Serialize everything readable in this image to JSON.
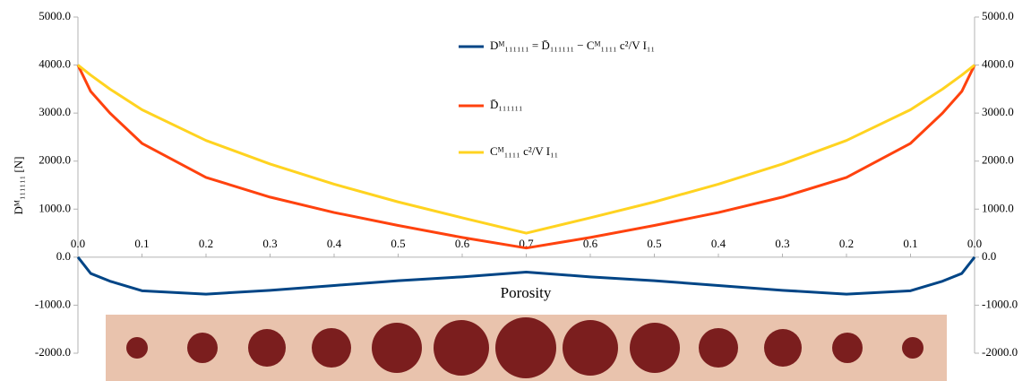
{
  "chart_data": {
    "type": "line",
    "x_label": "Porosity",
    "y_label": "Dᴹ₁₁₁₁₁₁ [N]",
    "x": [
      0,
      0.02,
      0.05,
      0.1,
      0.2,
      0.3,
      0.4,
      0.5,
      0.6,
      0.7,
      0.8,
      0.9,
      1.0,
      1.1,
      1.2,
      1.3,
      1.35,
      1.38,
      1.4
    ],
    "series": [
      {
        "name": "Dᴹ₁₁₁₁₁₁ = D̄₁₁₁₁₁₁ − Cᴹ₁₁₁₁ c²/V I₁₁",
        "color": "#004586",
        "values": [
          0,
          -340,
          -500,
          -700,
          -770,
          -690,
          -590,
          -490,
          -410,
          -310,
          -410,
          -490,
          -590,
          -690,
          -770,
          -700,
          -500,
          -340,
          0
        ]
      },
      {
        "name": "D̄₁₁₁₁₁₁",
        "color": "#ff420e",
        "values": [
          4000,
          3450,
          3000,
          2370,
          1660,
          1250,
          930,
          660,
          410,
          190,
          410,
          660,
          930,
          1250,
          1660,
          2370,
          3000,
          3450,
          4000
        ]
      },
      {
        "name": "Cᴹ₁₁₁₁ c²/V I₁₁",
        "color": "#ffd320",
        "values": [
          4000,
          3790,
          3500,
          3070,
          2430,
          1940,
          1520,
          1150,
          820,
          500,
          820,
          1150,
          1520,
          1940,
          2430,
          3070,
          3500,
          3790,
          4000
        ]
      }
    ],
    "xlim": [
      0,
      1.4
    ],
    "xticks": [
      {
        "value": 0,
        "label": "0.0"
      },
      0.1,
      0.2,
      0.3,
      0.4,
      0.5,
      0.6,
      0.7,
      {
        "value": 0.8,
        "label": "0.6"
      },
      {
        "value": 0.9,
        "label": "0.5"
      },
      {
        "value": 1.0,
        "label": "0.4"
      },
      {
        "value": 1.1,
        "label": "0.3"
      },
      {
        "value": 1.2,
        "label": "0.2"
      },
      {
        "value": 1.3,
        "label": "0.1"
      },
      {
        "value": 1.4,
        "label": "0.0"
      }
    ],
    "ylim": [
      -2000,
      5000
    ],
    "yticks": [
      {
        "value": -2000,
        "label": "-2000.0"
      },
      {
        "value": -1000,
        "label": "-1000.0"
      },
      {
        "value": 0,
        "label": "0.0"
      },
      {
        "value": 1000,
        "label": "1000.0"
      },
      {
        "value": 2000,
        "label": "2000.0"
      },
      {
        "value": 3000,
        "label": "3000.0"
      },
      {
        "value": 4000,
        "label": "4000.0"
      },
      {
        "value": 5000,
        "label": "5000.0"
      }
    ],
    "y2lim": [
      -2000,
      5000
    ],
    "y2ticks": [
      {
        "value": -2000,
        "label": "-2000.0"
      },
      {
        "value": -1000,
        "label": "-1000.0"
      },
      {
        "value": 0,
        "label": "0.0"
      },
      {
        "value": 1000,
        "label": "1000.0"
      },
      {
        "value": 2000,
        "label": "2000.0"
      },
      {
        "value": 3000,
        "label": "3000.0"
      },
      {
        "value": 4000,
        "label": "4000.0"
      },
      {
        "value": 5000,
        "label": "5000.0"
      }
    ],
    "grid": false,
    "legend": "top-center"
  }
}
